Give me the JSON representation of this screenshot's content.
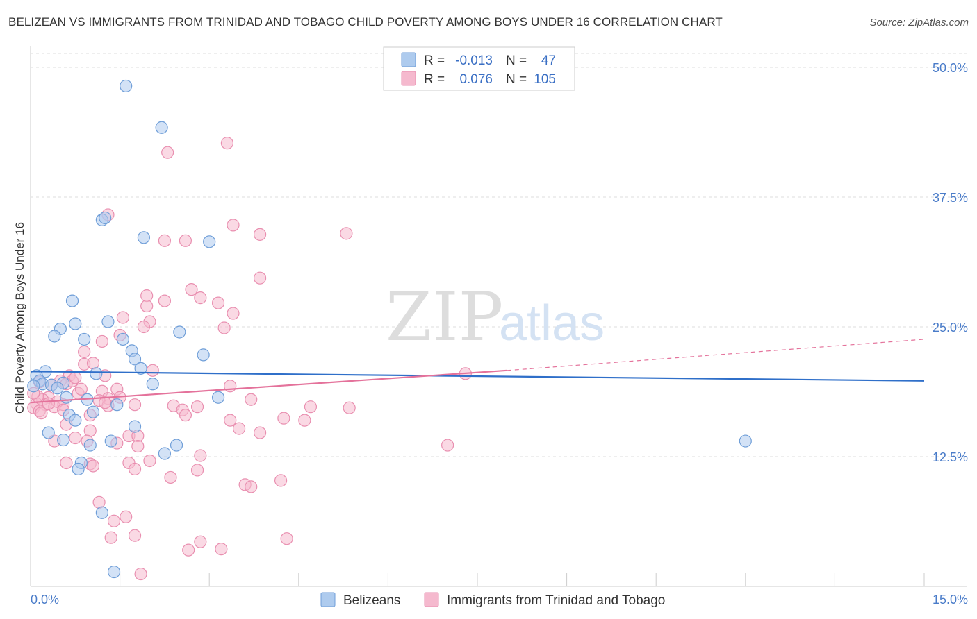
{
  "title": "BELIZEAN VS IMMIGRANTS FROM TRINIDAD AND TOBAGO CHILD POVERTY AMONG BOYS UNDER 16 CORRELATION CHART",
  "source": "Source: ZipAtlas.com",
  "watermark": {
    "zip": "ZIP",
    "atlas": "atlas"
  },
  "colors": {
    "blue_fill": "#aecbee",
    "blue_stroke": "#6f9ed8",
    "blue_line": "#2f6fc9",
    "pink_fill": "#f5b9ce",
    "pink_stroke": "#e98fb0",
    "pink_line": "#e4729b",
    "axis_text": "#4a7cc9",
    "grid": "#dddddd"
  },
  "legend": {
    "rows": [
      {
        "r_label": "R =",
        "r_value": "-0.013",
        "n_label": "N =",
        "n_value": "47",
        "series": "blue"
      },
      {
        "r_label": "R =",
        "r_value": "0.076",
        "n_label": "N =",
        "n_value": "105",
        "series": "pink"
      }
    ]
  },
  "chart_data": {
    "type": "scatter",
    "title": "BELIZEAN VS IMMIGRANTS FROM TRINIDAD AND TOBAGO CHILD POVERTY AMONG BOYS UNDER 16 CORRELATION CHART",
    "xlabel": "",
    "ylabel": "Child Poverty Among Boys Under 16",
    "xlim": [
      0,
      15
    ],
    "ylim": [
      0,
      50
    ],
    "x_tick_labels": [
      "0.0%",
      "15.0%"
    ],
    "y_ticks": [
      12.5,
      25.0,
      37.5,
      50.0
    ],
    "y_tick_labels": [
      "12.5%",
      "25.0%",
      "37.5%",
      "50.0%"
    ],
    "grid": true,
    "legend_position": "top-center",
    "series": [
      {
        "name": "Belizeans",
        "color": "blue",
        "r": -0.013,
        "n": 47,
        "trend": {
          "x": [
            0,
            15
          ],
          "y": [
            20.7,
            19.8
          ],
          "dashed_from": null
        },
        "points": [
          [
            1.6,
            48.2
          ],
          [
            2.2,
            44.2
          ],
          [
            1.2,
            35.3
          ],
          [
            1.25,
            35.5
          ],
          [
            1.9,
            33.6
          ],
          [
            3.0,
            33.2
          ],
          [
            0.7,
            27.5
          ],
          [
            0.5,
            24.8
          ],
          [
            0.75,
            25.3
          ],
          [
            1.3,
            25.5
          ],
          [
            2.5,
            24.5
          ],
          [
            0.4,
            24.1
          ],
          [
            0.9,
            23.8
          ],
          [
            1.55,
            23.8
          ],
          [
            1.7,
            22.7
          ],
          [
            2.9,
            22.3
          ],
          [
            1.75,
            21.9
          ],
          [
            1.85,
            21.0
          ],
          [
            0.25,
            20.7
          ],
          [
            0.1,
            20.3
          ],
          [
            0.15,
            19.8
          ],
          [
            0.2,
            19.5
          ],
          [
            0.05,
            19.3
          ],
          [
            0.55,
            19.6
          ],
          [
            1.1,
            20.5
          ],
          [
            2.05,
            19.5
          ],
          [
            3.15,
            18.2
          ],
          [
            0.6,
            18.2
          ],
          [
            0.65,
            16.5
          ],
          [
            0.95,
            18.0
          ],
          [
            1.45,
            17.5
          ],
          [
            0.75,
            16.0
          ],
          [
            1.05,
            16.8
          ],
          [
            1.75,
            15.4
          ],
          [
            0.3,
            14.8
          ],
          [
            0.55,
            14.1
          ],
          [
            1.0,
            13.6
          ],
          [
            1.35,
            14.0
          ],
          [
            2.45,
            13.6
          ],
          [
            2.25,
            12.8
          ],
          [
            0.85,
            11.9
          ],
          [
            0.8,
            11.3
          ],
          [
            1.2,
            7.1
          ],
          [
            1.4,
            1.4
          ],
          [
            12.0,
            14.0
          ],
          [
            0.35,
            19.4
          ],
          [
            0.45,
            19.1
          ]
        ]
      },
      {
        "name": "Immigrants from Trinidad and Tobago",
        "color": "pink",
        "r": 0.076,
        "n": 105,
        "trend": {
          "x": [
            0,
            8.0
          ],
          "y": [
            17.7,
            20.8
          ],
          "dashed_to": [
            15,
            23.8
          ]
        },
        "points": [
          [
            3.3,
            42.7
          ],
          [
            2.3,
            41.8
          ],
          [
            1.3,
            35.8
          ],
          [
            3.4,
            34.8
          ],
          [
            3.85,
            33.9
          ],
          [
            5.3,
            34.0
          ],
          [
            2.25,
            33.3
          ],
          [
            2.6,
            33.3
          ],
          [
            3.85,
            29.7
          ],
          [
            2.7,
            28.6
          ],
          [
            1.95,
            28.0
          ],
          [
            2.85,
            27.8
          ],
          [
            2.25,
            27.5
          ],
          [
            3.15,
            27.3
          ],
          [
            1.95,
            27.0
          ],
          [
            3.4,
            26.3
          ],
          [
            1.55,
            25.9
          ],
          [
            2.0,
            25.5
          ],
          [
            1.9,
            25.0
          ],
          [
            3.25,
            24.9
          ],
          [
            1.5,
            24.2
          ],
          [
            1.2,
            23.6
          ],
          [
            0.9,
            22.6
          ],
          [
            0.9,
            21.4
          ],
          [
            1.05,
            21.5
          ],
          [
            2.05,
            20.8
          ],
          [
            1.25,
            20.3
          ],
          [
            0.65,
            20.3
          ],
          [
            0.7,
            19.8
          ],
          [
            0.5,
            19.8
          ],
          [
            0.6,
            19.5
          ],
          [
            0.35,
            19.4
          ],
          [
            0.15,
            19.7
          ],
          [
            1.2,
            18.8
          ],
          [
            1.45,
            19.0
          ],
          [
            0.8,
            18.6
          ],
          [
            1.5,
            18.2
          ],
          [
            1.3,
            18.1
          ],
          [
            0.55,
            17.5
          ],
          [
            0.3,
            18.2
          ],
          [
            0.2,
            18.0
          ],
          [
            0.25,
            17.5
          ],
          [
            0.4,
            17.3
          ],
          [
            0.1,
            17.6
          ],
          [
            0.05,
            17.2
          ],
          [
            0.15,
            16.9
          ],
          [
            1.0,
            16.5
          ],
          [
            1.15,
            17.9
          ],
          [
            1.75,
            17.5
          ],
          [
            2.4,
            17.4
          ],
          [
            2.55,
            17.0
          ],
          [
            2.8,
            17.3
          ],
          [
            2.6,
            16.5
          ],
          [
            3.35,
            19.3
          ],
          [
            3.7,
            18.0
          ],
          [
            4.25,
            16.2
          ],
          [
            4.6,
            16.0
          ],
          [
            4.7,
            17.3
          ],
          [
            5.35,
            17.2
          ],
          [
            7.3,
            20.5
          ],
          [
            0.6,
            15.6
          ],
          [
            1.0,
            15.0
          ],
          [
            1.65,
            14.5
          ],
          [
            1.8,
            14.5
          ],
          [
            0.75,
            14.3
          ],
          [
            0.4,
            14.0
          ],
          [
            0.95,
            14.0
          ],
          [
            1.45,
            13.8
          ],
          [
            1.8,
            13.5
          ],
          [
            3.35,
            16.0
          ],
          [
            3.5,
            15.2
          ],
          [
            3.85,
            14.8
          ],
          [
            2.85,
            12.6
          ],
          [
            2.0,
            12.1
          ],
          [
            1.65,
            11.9
          ],
          [
            0.6,
            11.9
          ],
          [
            1.0,
            11.8
          ],
          [
            1.05,
            11.6
          ],
          [
            1.75,
            11.3
          ],
          [
            2.8,
            11.2
          ],
          [
            2.35,
            10.5
          ],
          [
            3.6,
            9.8
          ],
          [
            3.7,
            9.6
          ],
          [
            4.2,
            10.2
          ],
          [
            7.0,
            13.6
          ],
          [
            1.15,
            8.1
          ],
          [
            1.6,
            6.7
          ],
          [
            1.4,
            6.3
          ],
          [
            1.35,
            4.7
          ],
          [
            1.75,
            4.9
          ],
          [
            2.85,
            4.3
          ],
          [
            3.2,
            3.6
          ],
          [
            2.65,
            3.5
          ],
          [
            4.3,
            4.6
          ],
          [
            1.85,
            1.2
          ],
          [
            0.45,
            17.8
          ],
          [
            0.55,
            17.0
          ],
          [
            0.85,
            19.0
          ],
          [
            0.3,
            17.6
          ],
          [
            0.12,
            18.3
          ],
          [
            0.18,
            16.7
          ],
          [
            0.05,
            18.6
          ],
          [
            0.75,
            20.1
          ],
          [
            1.3,
            17.4
          ],
          [
            1.25,
            17.7
          ]
        ]
      }
    ]
  },
  "bottom_legend": [
    {
      "label": "Belizeans",
      "series": "blue"
    },
    {
      "label": "Immigrants from Trinidad and Tobago",
      "series": "pink"
    }
  ]
}
